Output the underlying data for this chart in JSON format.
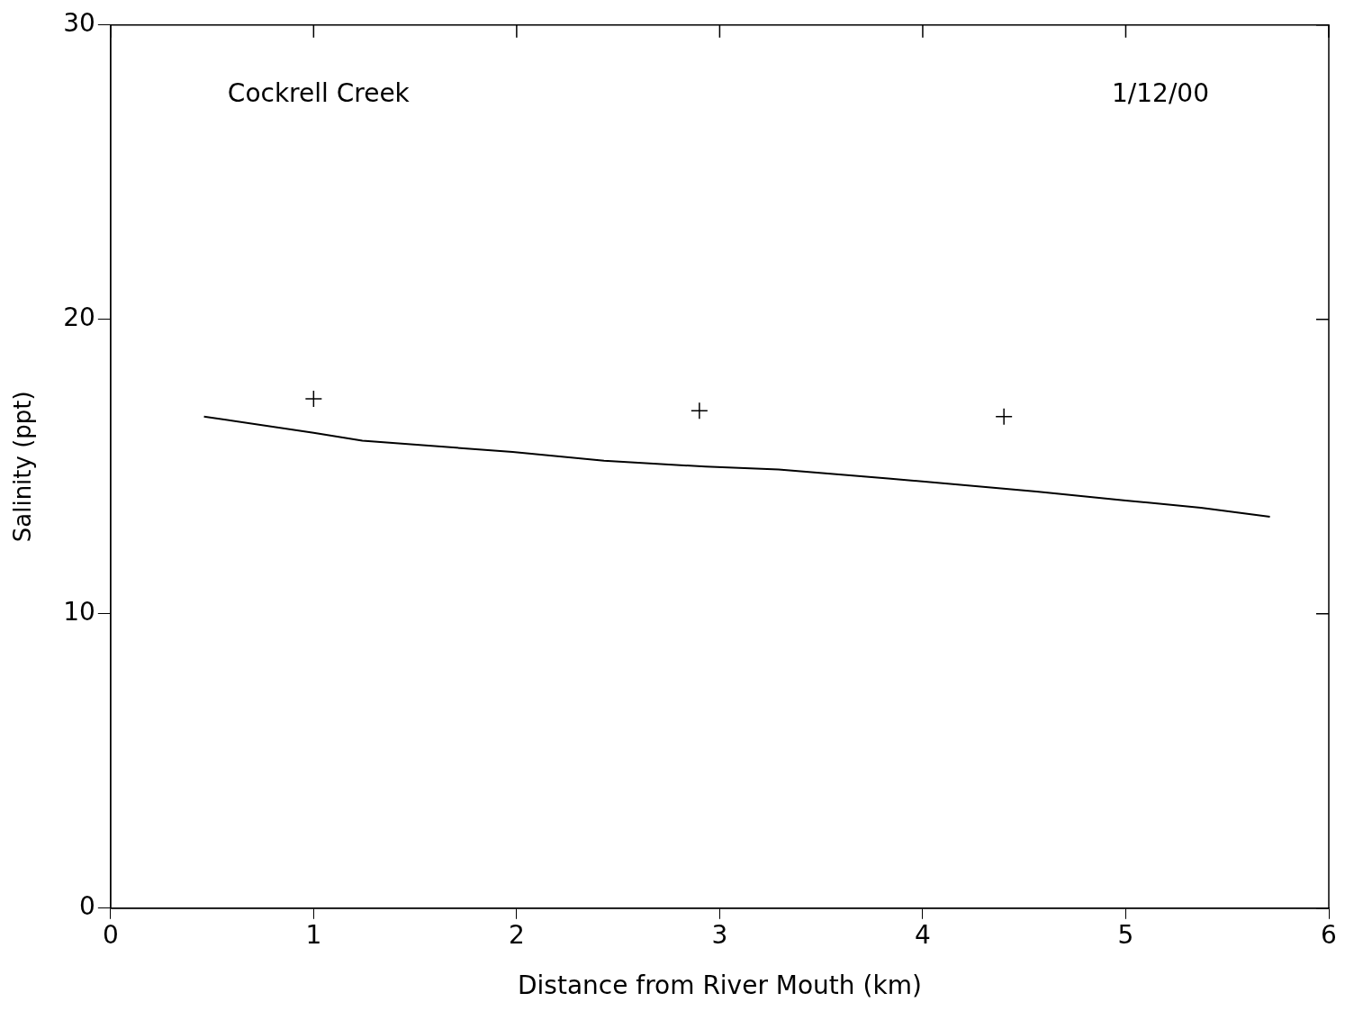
{
  "chart_data": {
    "type": "line",
    "xlabel": "Distance from River Mouth (km)",
    "ylabel": "Salinity (ppt)",
    "xlim": [
      0,
      6
    ],
    "xticks": [
      0,
      1,
      2,
      3,
      4,
      5,
      6
    ],
    "ylim": [
      0,
      30
    ],
    "yticks": [
      0,
      10,
      20,
      30
    ],
    "grid": false,
    "legend": false,
    "annotations": [
      {
        "text": "Cockrell Creek"
      },
      {
        "text": "1/12/00"
      }
    ],
    "series": [
      {
        "type": "line",
        "color": "#000000",
        "marker": "none",
        "line_style": "solid",
        "x": [
          0.46,
          1.0,
          1.24,
          1.98,
          2.43,
          2.93,
          3.29,
          3.83,
          4.56,
          5.0,
          5.37,
          5.71
        ],
        "values": [
          16.7,
          16.15,
          15.88,
          15.5,
          15.2,
          15.0,
          14.9,
          14.6,
          14.15,
          13.85,
          13.6,
          13.3
        ]
      },
      {
        "type": "scatter",
        "color": "#000000",
        "marker": "cross",
        "x": [
          1.0,
          2.9,
          4.4
        ],
        "values": [
          17.3,
          16.9,
          16.7
        ]
      }
    ]
  }
}
